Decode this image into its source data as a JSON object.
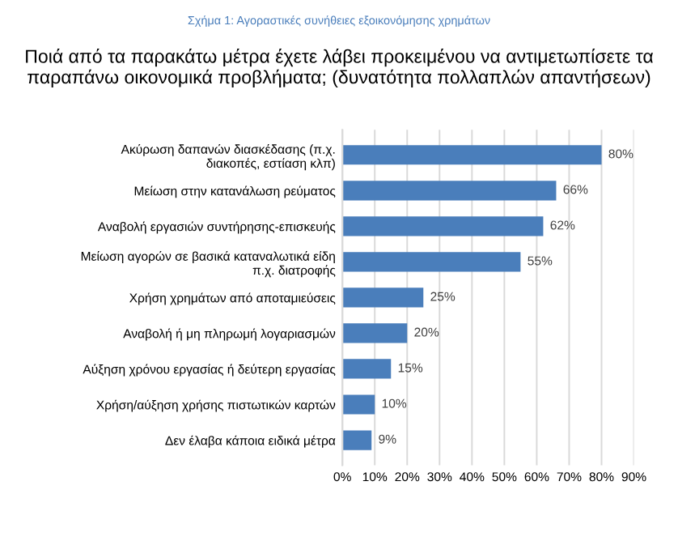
{
  "chart_data": {
    "type": "bar",
    "orientation": "horizontal",
    "title": "Σχήμα 1: Αγοραστικές συνήθειες εξοικονόμησης χρημάτων",
    "subtitle": "Ποιά από τα παρακάτω μέτρα έχετε λάβει προκειμένου να αντιμετωπίσετε τα παραπάνω οικονομικά προβλήματα; (δυνατότητα πολλαπλών απαντήσεων)",
    "categories": [
      "Ακύρωση δαπανών διασκέδασης (π.χ.\nδιακοπές, εστίαση κλπ)",
      "Μείωση στην κατανάλωση ρεύματος",
      "Αναβολή εργασιών συντήρησης-επισκευής",
      "Μείωση αγορών σε βασικά καταναλωτικά είδη\nπ.χ. διατροφής",
      "Χρήση χρημάτων από αποταμιεύσεις",
      "Αναβολή ή μη πληρωμή λογαριασμών",
      "Αύξηση χρόνου εργασίας ή δεύτερη εργασίας",
      "Χρήση/αύξηση χρήσης πιστωτικών καρτών",
      "Δεν έλαβα κάποια ειδικά μέτρα"
    ],
    "values": [
      80,
      66,
      62,
      55,
      25,
      20,
      15,
      10,
      9
    ],
    "value_labels": [
      "80%",
      "66%",
      "62%",
      "55%",
      "25%",
      "20%",
      "15%",
      "10%",
      "9%"
    ],
    "color": "#4a7ebb",
    "xlim": [
      0,
      90
    ],
    "xticks": [
      {
        "value": 0,
        "label": "0%"
      },
      {
        "value": 10,
        "label": "10%"
      },
      {
        "value": 20,
        "label": "20%"
      },
      {
        "value": 30,
        "label": "30%"
      },
      {
        "value": 40,
        "label": "40%"
      },
      {
        "value": 50,
        "label": "50%"
      },
      {
        "value": 60,
        "label": "60%"
      },
      {
        "value": 70,
        "label": "70%"
      },
      {
        "value": 80,
        "label": "80%"
      },
      {
        "value": 90,
        "label": "90%"
      }
    ],
    "grid": "x",
    "legend": false
  }
}
